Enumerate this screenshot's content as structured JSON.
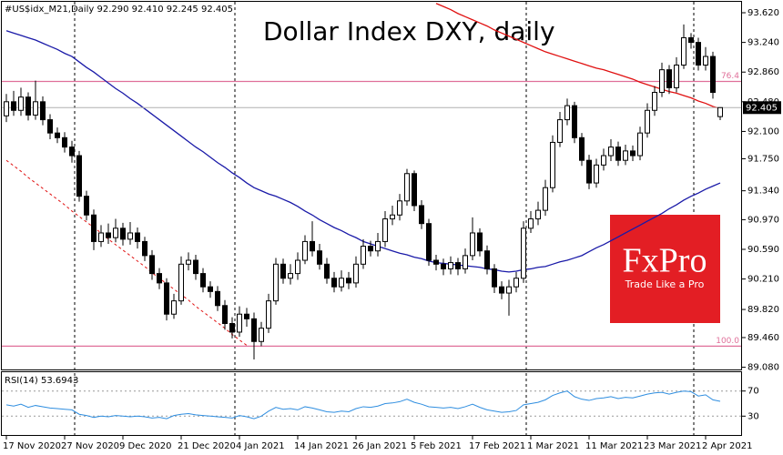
{
  "chart_data": [
    {
      "type": "candlestick",
      "header": "#US$idx_M21,Daily  92.290 92.410 92.245 92.405",
      "title": "Dollar Index DXY, daily",
      "categories": [
        "17 Nov 2020",
        null,
        null,
        null,
        null,
        null,
        null,
        null,
        "27 Nov 2020",
        null,
        null,
        null,
        null,
        null,
        null,
        null,
        "9 Dec 2020",
        null,
        null,
        null,
        null,
        null,
        null,
        null,
        "21 Dec 2020",
        null,
        null,
        null,
        null,
        null,
        null,
        null,
        "4 Jan 2021",
        null,
        null,
        null,
        null,
        null,
        null,
        null,
        "14 Jan 2021",
        null,
        null,
        null,
        null,
        null,
        null,
        null,
        "26 Jan 2021",
        null,
        null,
        null,
        null,
        null,
        null,
        null,
        "5 Feb 2021",
        null,
        null,
        null,
        null,
        null,
        null,
        null,
        "17 Feb 2021",
        null,
        null,
        null,
        null,
        null,
        null,
        null,
        "1 Mar 2021",
        null,
        null,
        null,
        null,
        null,
        null,
        null,
        "11 Mar 2021",
        null,
        null,
        null,
        null,
        null,
        null,
        null,
        "23 Mar 2021",
        null,
        null,
        null,
        null,
        null,
        null,
        null,
        "2 Apr 2021",
        null,
        null
      ],
      "open": [
        92.3,
        92.48,
        92.37,
        92.54,
        92.31,
        92.48,
        92.25,
        92.08,
        92.02,
        91.9,
        91.79,
        91.27,
        91.03,
        90.69,
        90.8,
        90.74,
        90.86,
        90.72,
        90.8,
        90.69,
        90.51,
        90.28,
        90.16,
        89.76,
        89.93,
        90.4,
        90.45,
        90.28,
        90.11,
        90.05,
        89.87,
        89.64,
        89.53,
        89.76,
        89.7,
        89.41,
        89.58,
        89.93,
        90.4,
        90.22,
        90.28,
        90.45,
        90.69,
        90.57,
        90.4,
        90.22,
        90.11,
        90.22,
        90.16,
        90.4,
        90.63,
        90.57,
        90.69,
        90.98,
        91.03,
        91.21,
        91.56,
        91.15,
        90.92,
        90.45,
        90.4,
        90.34,
        90.42,
        90.34,
        90.51,
        90.8,
        90.57,
        90.34,
        90.11,
        90.03,
        90.11,
        90.22,
        90.86,
        90.98,
        91.09,
        91.38,
        91.96,
        92.25,
        92.43,
        92.02,
        91.73,
        91.44,
        91.67,
        91.79,
        91.9,
        91.73,
        91.85,
        91.79,
        92.08,
        92.37,
        92.6,
        92.89,
        92.66,
        92.95,
        93.3,
        93.24,
        92.95,
        93.06,
        92.29
      ],
      "high": [
        92.58,
        92.62,
        92.66,
        92.6,
        92.75,
        92.55,
        92.32,
        92.15,
        92.09,
        91.98,
        91.85,
        91.34,
        91.1,
        90.9,
        90.92,
        90.98,
        90.93,
        90.94,
        90.87,
        90.75,
        90.58,
        90.35,
        90.22,
        90.02,
        90.5,
        90.55,
        90.52,
        90.35,
        90.18,
        90.12,
        89.94,
        89.72,
        89.86,
        89.84,
        89.78,
        89.66,
        90.02,
        90.48,
        90.47,
        90.4,
        90.55,
        90.77,
        90.95,
        90.66,
        90.48,
        90.3,
        90.32,
        90.3,
        90.5,
        90.72,
        90.7,
        90.8,
        91.08,
        91.15,
        91.3,
        91.62,
        91.6,
        91.22,
        90.98,
        90.52,
        90.47,
        90.5,
        90.48,
        90.6,
        91.0,
        90.86,
        90.64,
        90.4,
        90.18,
        90.2,
        90.3,
        90.95,
        91.08,
        91.2,
        91.48,
        92.05,
        92.35,
        92.52,
        92.48,
        92.08,
        91.8,
        91.75,
        91.88,
        92.0,
        91.97,
        91.93,
        91.92,
        92.16,
        92.46,
        92.68,
        92.98,
        92.95,
        93.05,
        93.47,
        93.36,
        93.3,
        93.18,
        93.12,
        92.41
      ],
      "low": [
        92.22,
        92.3,
        92.3,
        92.24,
        92.25,
        92.18,
        92.0,
        91.95,
        91.83,
        91.7,
        91.2,
        90.96,
        90.58,
        90.62,
        90.66,
        90.68,
        90.64,
        90.65,
        90.6,
        90.44,
        90.2,
        90.08,
        89.68,
        89.7,
        89.88,
        90.32,
        90.2,
        90.04,
        89.97,
        89.8,
        89.56,
        89.45,
        89.47,
        89.6,
        89.18,
        89.35,
        89.52,
        89.88,
        90.15,
        90.14,
        90.2,
        90.4,
        90.5,
        90.33,
        90.15,
        90.04,
        90.05,
        90.08,
        90.1,
        90.34,
        90.5,
        90.5,
        90.62,
        90.9,
        90.96,
        91.15,
        91.08,
        90.85,
        90.38,
        90.32,
        90.26,
        90.27,
        90.26,
        90.28,
        90.45,
        90.5,
        90.27,
        90.03,
        89.95,
        89.74,
        90.04,
        90.16,
        90.8,
        90.9,
        91.02,
        91.32,
        91.9,
        92.18,
        91.95,
        91.66,
        91.36,
        91.38,
        91.6,
        91.72,
        91.66,
        91.67,
        91.72,
        91.73,
        92.02,
        92.3,
        92.54,
        92.58,
        92.6,
        92.9,
        93.16,
        92.88,
        92.88,
        92.52,
        92.245
      ],
      "close": [
        92.48,
        92.37,
        92.54,
        92.31,
        92.48,
        92.25,
        92.08,
        92.02,
        91.9,
        91.79,
        91.27,
        91.03,
        90.69,
        90.8,
        90.74,
        90.86,
        90.72,
        90.8,
        90.69,
        90.51,
        90.28,
        90.16,
        89.76,
        89.93,
        90.4,
        90.45,
        90.28,
        90.11,
        90.05,
        89.87,
        89.64,
        89.53,
        89.76,
        89.7,
        89.41,
        89.58,
        89.93,
        90.4,
        90.22,
        90.28,
        90.45,
        90.69,
        90.57,
        90.4,
        90.22,
        90.11,
        90.22,
        90.16,
        90.4,
        90.63,
        90.57,
        90.69,
        90.98,
        91.03,
        91.21,
        91.56,
        91.15,
        90.92,
        90.45,
        90.4,
        90.34,
        90.42,
        90.34,
        90.51,
        90.8,
        90.57,
        90.34,
        90.11,
        90.03,
        90.11,
        90.22,
        90.86,
        90.98,
        91.09,
        91.38,
        91.96,
        92.25,
        92.43,
        92.02,
        91.73,
        91.44,
        91.67,
        91.79,
        91.9,
        91.73,
        91.85,
        91.79,
        92.08,
        92.37,
        92.6,
        92.89,
        92.66,
        92.95,
        93.3,
        93.24,
        92.95,
        93.06,
        92.6,
        92.405
      ],
      "up_color": "#ffffff",
      "down_color": "#000000",
      "lines": [
        {
          "color": "#1a1aa8",
          "dashed": false,
          "values": [
            93.39,
            93.36,
            93.33,
            93.3,
            93.27,
            93.23,
            93.19,
            93.15,
            93.1,
            93.06,
            92.99,
            92.92,
            92.86,
            92.79,
            92.72,
            92.65,
            92.59,
            92.52,
            92.46,
            92.39,
            92.32,
            92.25,
            92.18,
            92.11,
            92.04,
            91.97,
            91.9,
            91.84,
            91.77,
            91.7,
            91.64,
            91.57,
            91.51,
            91.44,
            91.38,
            91.34,
            91.3,
            91.27,
            91.23,
            91.19,
            91.14,
            91.08,
            91.03,
            90.97,
            90.92,
            90.87,
            90.83,
            90.78,
            90.74,
            90.69,
            90.66,
            90.63,
            90.6,
            90.57,
            90.54,
            90.52,
            90.49,
            90.47,
            90.44,
            90.42,
            90.41,
            90.4,
            90.39,
            90.38,
            90.37,
            90.36,
            90.34,
            90.33,
            90.31,
            90.3,
            90.31,
            90.33,
            90.34,
            90.36,
            90.37,
            90.4,
            90.43,
            90.45,
            90.48,
            90.51,
            90.56,
            90.61,
            90.65,
            90.7,
            90.75,
            90.8,
            90.85,
            90.9,
            90.95,
            91.0,
            91.05,
            91.11,
            91.16,
            91.22,
            91.27,
            91.31,
            91.36,
            91.4,
            91.44
          ]
        },
        {
          "color": "#e01010",
          "dashed": false,
          "values": [
            null,
            null,
            null,
            null,
            null,
            null,
            null,
            null,
            null,
            null,
            null,
            null,
            null,
            null,
            null,
            null,
            null,
            null,
            null,
            null,
            null,
            null,
            null,
            null,
            null,
            null,
            null,
            null,
            null,
            null,
            null,
            null,
            null,
            null,
            null,
            null,
            null,
            null,
            null,
            null,
            null,
            null,
            null,
            null,
            null,
            null,
            null,
            null,
            null,
            null,
            null,
            null,
            null,
            null,
            null,
            null,
            null,
            null,
            null,
            93.74,
            93.7,
            93.66,
            93.61,
            93.57,
            93.53,
            93.49,
            93.45,
            93.4,
            93.36,
            93.32,
            93.28,
            93.24,
            93.2,
            93.16,
            93.12,
            93.09,
            93.06,
            93.03,
            93.0,
            92.97,
            92.94,
            92.91,
            92.89,
            92.86,
            92.83,
            92.8,
            92.77,
            92.73,
            92.7,
            92.67,
            92.64,
            92.61,
            92.59,
            92.56,
            92.53,
            92.49,
            92.46,
            92.42,
            92.39
          ]
        },
        {
          "color": "#e01010",
          "dashed": true,
          "values": [
            91.73,
            91.66,
            91.59,
            91.51,
            91.44,
            91.37,
            91.3,
            91.23,
            91.16,
            91.08,
            91.01,
            90.94,
            90.87,
            90.8,
            90.72,
            90.65,
            90.58,
            90.51,
            90.44,
            90.37,
            90.29,
            90.22,
            90.15,
            90.08,
            90.01,
            89.94,
            89.86,
            89.79,
            89.72,
            89.65,
            89.58,
            89.5,
            89.43,
            89.36,
            null,
            null,
            null,
            null,
            null,
            null,
            null,
            null,
            null,
            null,
            null,
            null,
            null,
            null,
            null,
            null,
            null,
            null,
            null,
            null,
            null,
            null,
            null,
            null,
            null,
            null,
            null,
            null,
            null,
            null,
            null,
            null,
            null,
            null,
            null,
            null,
            null,
            null,
            null,
            null,
            null,
            null,
            null,
            null,
            null,
            null,
            null,
            null,
            null,
            null,
            null,
            null,
            null,
            null,
            null,
            null,
            null,
            null,
            null,
            null,
            null,
            null,
            null,
            null,
            null
          ]
        }
      ],
      "levels": [
        {
          "value": 92.74,
          "label": "76.4",
          "color": "#e0709a"
        },
        {
          "value": 89.35,
          "label": "100.0",
          "color": "#e0709a"
        }
      ],
      "ylim": [
        89.04,
        93.76
      ],
      "yticks": [
        {
          "value": 93.62,
          "label": "93.620"
        },
        {
          "value": 93.24,
          "label": "93.240"
        },
        {
          "value": 92.86,
          "label": "92.860"
        },
        {
          "value": 92.48,
          "label": "92.480"
        },
        {
          "value": 92.1,
          "label": "92.100"
        },
        {
          "value": 91.75,
          "label": "91.750"
        },
        {
          "value": 91.34,
          "label": "91.340"
        },
        {
          "value": 90.97,
          "label": "90.970"
        },
        {
          "value": 90.59,
          "label": "90.590"
        },
        {
          "value": 90.21,
          "label": "90.210"
        },
        {
          "value": 89.82,
          "label": "89.820"
        },
        {
          "value": 89.46,
          "label": "89.460"
        },
        {
          "value": 89.08,
          "label": "89.080"
        }
      ]
    },
    {
      "type": "line",
      "title": "RSI(14) 53.6943",
      "color": "#2f8ee0",
      "values": [
        48,
        46,
        49,
        44,
        47,
        45,
        43,
        42,
        41,
        40,
        33,
        31,
        28,
        30,
        29,
        31,
        30,
        29,
        30,
        29,
        27,
        28,
        26,
        31,
        33,
        34,
        32,
        31,
        30,
        29,
        28,
        27,
        31,
        29,
        26,
        30,
        38,
        44,
        41,
        42,
        40,
        45,
        43,
        40,
        37,
        36,
        38,
        37,
        42,
        45,
        44,
        46,
        50,
        51,
        53,
        57,
        52,
        49,
        45,
        44,
        43,
        44,
        42,
        45,
        49,
        44,
        40,
        38,
        36,
        37,
        39,
        48,
        50,
        52,
        56,
        63,
        67,
        70,
        61,
        57,
        55,
        58,
        59,
        61,
        58,
        60,
        59,
        62,
        65,
        67,
        68,
        65,
        68,
        70,
        69,
        62,
        64,
        56,
        53.69
      ],
      "ylim": [
        0,
        100
      ],
      "yticks": [
        70,
        30
      ]
    }
  ],
  "watermark": {
    "brand": "FxPro",
    "slogan": "Trade Like a Pro"
  }
}
